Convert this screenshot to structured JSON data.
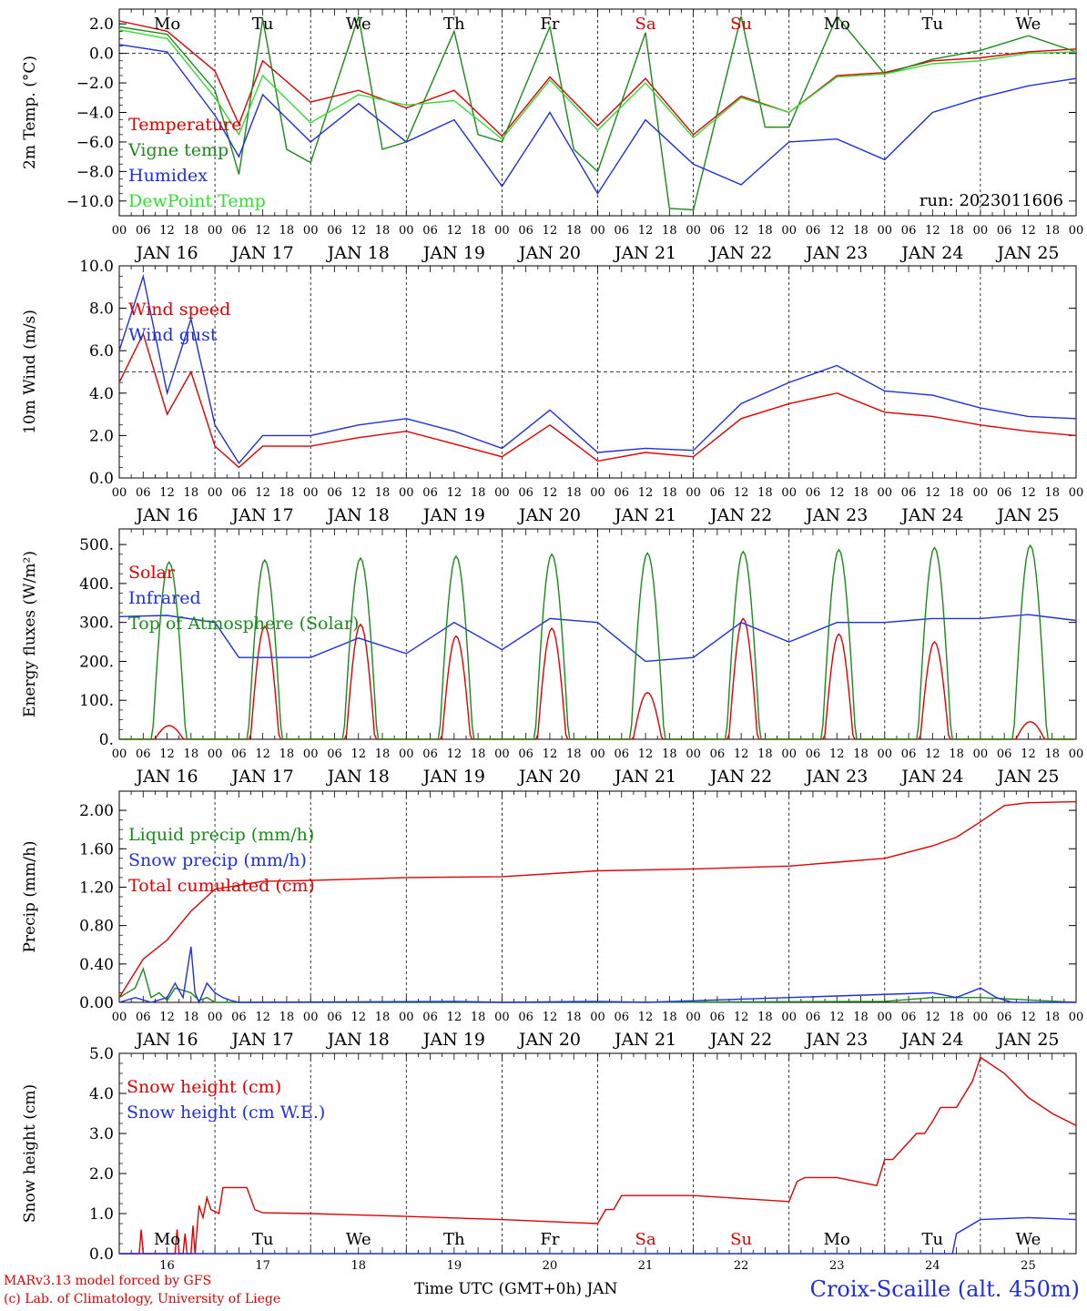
{
  "chart_data": [
    {
      "type": "line",
      "panel": "temperature",
      "ylabel": "2m Temp. (°C)",
      "ylim": [
        -11,
        3
      ],
      "yticks": [
        2.0,
        0.0,
        -2.0,
        -4.0,
        -6.0,
        -8.0,
        -10.0
      ],
      "ytick_labels": [
        "2.0",
        "0.0",
        "−2.0",
        "−4.0",
        "−6.0",
        "−8.0",
        "−10.0"
      ],
      "reference_line": 0.0,
      "annotation": "run: 2023011606",
      "series": [
        {
          "name": "Temperature",
          "color": "#e00000",
          "x": [
            0,
            12,
            24,
            30,
            36,
            48,
            60,
            72,
            84,
            96,
            108,
            120,
            132,
            144,
            156,
            168,
            180,
            192,
            204,
            216,
            228,
            240
          ],
          "y": [
            2.2,
            1.5,
            -1.2,
            -4.8,
            -0.5,
            -3.3,
            -2.5,
            -3.7,
            -2.5,
            -5.6,
            -1.6,
            -4.9,
            -1.7,
            -5.5,
            -2.9,
            -4.0,
            -1.5,
            -1.3,
            -0.5,
            -0.3,
            0.1,
            0.3
          ]
        },
        {
          "name": "Vigne temp",
          "color": "#1a8a1a",
          "x": [
            0,
            12,
            24,
            30,
            36,
            42,
            48,
            60,
            66,
            72,
            84,
            90,
            96,
            108,
            114,
            120,
            132,
            138,
            144,
            156,
            162,
            168,
            180,
            192,
            204,
            216,
            228,
            240
          ],
          "y": [
            1.8,
            1.3,
            -2.5,
            -8.2,
            2.3,
            -6.5,
            -7.4,
            2.5,
            -6.5,
            -6.0,
            1.5,
            -5.5,
            -6.0,
            1.8,
            -6.5,
            -8.0,
            1.4,
            -10.5,
            -10.6,
            2.5,
            -5.0,
            -5.0,
            2.5,
            -1.4,
            -0.4,
            0.2,
            1.2,
            0.1
          ]
        },
        {
          "name": "Humidex",
          "color": "#1f2fe0",
          "x": [
            0,
            12,
            24,
            30,
            36,
            48,
            60,
            72,
            84,
            96,
            108,
            120,
            132,
            144,
            156,
            168,
            180,
            192,
            204,
            216,
            228,
            240
          ],
          "y": [
            0.6,
            0.1,
            -4.2,
            -7.0,
            -2.8,
            -6.0,
            -3.4,
            -6.0,
            -4.5,
            -9.0,
            -4.0,
            -9.5,
            -4.5,
            -7.5,
            -8.9,
            -6.0,
            -5.8,
            -7.2,
            -4.0,
            -3.0,
            -2.2,
            -1.7
          ]
        },
        {
          "name": "DewPoint Temp",
          "color": "#33dd33",
          "x": [
            0,
            12,
            24,
            30,
            36,
            48,
            60,
            72,
            84,
            96,
            108,
            120,
            132,
            144,
            156,
            168,
            180,
            192,
            204,
            216,
            228,
            240
          ],
          "y": [
            1.6,
            1.0,
            -3.0,
            -5.5,
            -1.5,
            -4.7,
            -2.8,
            -3.5,
            -3.2,
            -5.8,
            -1.8,
            -5.2,
            -2.0,
            -5.7,
            -3.0,
            -4.0,
            -1.6,
            -1.4,
            -0.7,
            -0.5,
            0.0,
            0.1
          ]
        }
      ]
    },
    {
      "type": "line",
      "panel": "wind",
      "ylabel": "10m Wind (m/s)",
      "ylim": [
        0,
        10
      ],
      "yticks": [
        0.0,
        2.0,
        4.0,
        6.0,
        8.0,
        10.0
      ],
      "ytick_labels": [
        "0.0",
        "2.0",
        "4.0",
        "6.0",
        "8.0",
        "10.0"
      ],
      "reference_line": 5.0,
      "series": [
        {
          "name": "Wind speed",
          "color": "#e00000",
          "x": [
            0,
            6,
            12,
            18,
            24,
            30,
            36,
            48,
            60,
            72,
            84,
            96,
            108,
            120,
            132,
            144,
            156,
            168,
            180,
            192,
            204,
            216,
            228,
            240
          ],
          "y": [
            4.5,
            6.8,
            3.0,
            5.0,
            1.5,
            0.5,
            1.5,
            1.5,
            1.9,
            2.2,
            1.6,
            1.0,
            2.5,
            0.8,
            1.2,
            1.0,
            2.8,
            3.5,
            4.0,
            3.1,
            2.9,
            2.5,
            2.2,
            2.0
          ]
        },
        {
          "name": "Wind gust",
          "color": "#1f2fe0",
          "x": [
            0,
            6,
            12,
            18,
            24,
            30,
            36,
            48,
            60,
            72,
            84,
            96,
            108,
            120,
            132,
            144,
            156,
            168,
            180,
            192,
            204,
            216,
            228,
            240
          ],
          "y": [
            6.0,
            9.5,
            4.0,
            7.5,
            2.5,
            0.7,
            2.0,
            2.0,
            2.5,
            2.8,
            2.2,
            1.4,
            3.2,
            1.2,
            1.4,
            1.3,
            3.5,
            4.5,
            5.3,
            4.1,
            3.9,
            3.3,
            2.9,
            2.8
          ]
        }
      ]
    },
    {
      "type": "line",
      "panel": "energy",
      "ylabel": "Energy fluxes (W/m²)",
      "ylim": [
        0,
        540
      ],
      "yticks": [
        0,
        100,
        200,
        300,
        400,
        500
      ],
      "ytick_labels": [
        "0.",
        "100.",
        "200.",
        "300.",
        "400.",
        "500."
      ],
      "day_peaks": {
        "top_of_atmosphere": [
          455,
          460,
          465,
          470,
          475,
          478,
          482,
          487,
          492,
          498
        ],
        "solar": [
          35,
          290,
          295,
          265,
          285,
          120,
          310,
          270,
          250,
          45
        ]
      },
      "series": [
        {
          "name": "Solar",
          "color": "#e00000",
          "values": "day_peaks.solar"
        },
        {
          "name": "Infrared",
          "color": "#1f2fe0",
          "x": [
            0,
            12,
            24,
            30,
            36,
            48,
            60,
            72,
            84,
            96,
            108,
            120,
            132,
            144,
            156,
            168,
            180,
            192,
            204,
            216,
            228,
            240
          ],
          "y": [
            315,
            318,
            300,
            210,
            210,
            210,
            260,
            220,
            300,
            230,
            310,
            300,
            200,
            210,
            300,
            250,
            300,
            300,
            310,
            310,
            320,
            305
          ]
        },
        {
          "name": "Top of Atmosphere (Solar)",
          "color": "#1a8a1a",
          "values": "day_peaks.top_of_atmosphere"
        }
      ]
    },
    {
      "type": "line",
      "panel": "precip",
      "ylabel": "Precip (mm/h)",
      "ylim": [
        0,
        2.2
      ],
      "yticks": [
        0.0,
        0.4,
        0.8,
        1.2,
        1.6,
        2.0
      ],
      "ytick_labels": [
        "0.00",
        "0.40",
        "0.80",
        "1.20",
        "1.60",
        "2.00"
      ],
      "series": [
        {
          "name": "Liquid precip (mm/h)",
          "color": "#1a8a1a",
          "x": [
            0,
            4,
            6,
            8,
            10,
            12,
            14,
            18,
            20,
            22,
            24,
            26,
            30,
            60,
            120,
            192,
            204,
            210,
            216,
            240
          ],
          "y": [
            0.05,
            0.15,
            0.35,
            0.05,
            0.1,
            0.02,
            0.15,
            0.1,
            0.02,
            0.05,
            0.0,
            0.0,
            0.0,
            0.0,
            0.0,
            0.01,
            0.05,
            0.05,
            0.05,
            0.0
          ]
        },
        {
          "name": "Snow precip (mm/h)",
          "color": "#1f2fe0",
          "x": [
            0,
            4,
            8,
            12,
            14,
            16,
            18,
            19,
            20,
            22,
            24,
            26,
            28,
            30,
            84,
            96,
            120,
            132,
            204,
            210,
            216,
            220,
            224,
            240
          ],
          "y": [
            0.0,
            0.05,
            0.0,
            0.05,
            0.2,
            0.05,
            0.58,
            0.1,
            0.0,
            0.2,
            0.1,
            0.05,
            0.02,
            0.0,
            0.01,
            0.0,
            0.01,
            0.0,
            0.1,
            0.05,
            0.15,
            0.05,
            0.0,
            0.0
          ]
        },
        {
          "name": "Total cumulated (cm)",
          "color": "#e00000",
          "x": [
            0,
            6,
            12,
            18,
            24,
            36,
            48,
            72,
            96,
            120,
            144,
            168,
            180,
            192,
            204,
            210,
            216,
            222,
            228,
            240
          ],
          "y": [
            0.05,
            0.45,
            0.65,
            0.95,
            1.18,
            1.26,
            1.27,
            1.3,
            1.31,
            1.37,
            1.39,
            1.42,
            1.46,
            1.5,
            1.63,
            1.72,
            1.88,
            2.05,
            2.08,
            2.09
          ]
        }
      ]
    },
    {
      "type": "line",
      "panel": "snow",
      "ylabel": "Snow height (cm)",
      "ylim": [
        0,
        5
      ],
      "yticks": [
        0.0,
        1.0,
        2.0,
        3.0,
        4.0,
        5.0
      ],
      "ytick_labels": [
        "0.0",
        "1.0",
        "2.0",
        "3.0",
        "4.0",
        "5.0"
      ],
      "series": [
        {
          "name": "Snow height (cm)",
          "color": "#e00000",
          "x": [
            0,
            5,
            5.5,
            6,
            14,
            14.5,
            15,
            16,
            16.5,
            17,
            18,
            18.5,
            19,
            20,
            21,
            22,
            23,
            24,
            25,
            26,
            32,
            34,
            36,
            48,
            72,
            96,
            120,
            122,
            124,
            126,
            144,
            168,
            170,
            172,
            180,
            190,
            192,
            194,
            200,
            202,
            204,
            206,
            210,
            214,
            216,
            222,
            228,
            234,
            240
          ],
          "y": [
            0,
            0,
            0.6,
            0,
            0,
            0.6,
            0,
            0,
            0.5,
            0,
            0,
            0.7,
            0,
            1.2,
            0.9,
            1.4,
            1.1,
            1.05,
            1.0,
            1.65,
            1.65,
            1.1,
            1.02,
            1.0,
            0.93,
            0.85,
            0.75,
            1.1,
            1.1,
            1.45,
            1.45,
            1.3,
            1.8,
            1.9,
            1.9,
            1.7,
            2.35,
            2.35,
            3.0,
            3.0,
            3.3,
            3.65,
            3.65,
            4.3,
            4.9,
            4.5,
            3.9,
            3.5,
            3.2
          ]
        },
        {
          "name": "Snow height (cm W.E.)",
          "color": "#1f2fe0",
          "x": [
            0,
            209,
            210,
            216,
            228,
            240
          ],
          "y": [
            0,
            0,
            0.5,
            0.85,
            0.9,
            0.85
          ]
        }
      ]
    }
  ],
  "shared_x": {
    "hour_ticks": [
      "00",
      "06",
      "12",
      "18"
    ],
    "date_labels": [
      "JAN 16",
      "JAN 17",
      "JAN 18",
      "JAN 19",
      "JAN 20",
      "JAN 21",
      "JAN 22",
      "JAN 23",
      "JAN 24",
      "JAN 25"
    ],
    "weekdays": [
      "Mo",
      "Tu",
      "We",
      "Th",
      "Fr",
      "Sa",
      "Su",
      "Mo",
      "Tu",
      "We"
    ],
    "weekend_color": "#e00000",
    "weekday_color": "#000000",
    "bottom_day_numbers": [
      "16",
      "17",
      "18",
      "19",
      "20",
      "21",
      "22",
      "23",
      "24",
      "25"
    ]
  },
  "footer": {
    "model": "MARv3.13 model forced by GFS",
    "credit": "(c) Lab. of Climatology, University of Liege",
    "axis_title": "Time UTC (GMT+0h) JAN",
    "station": "Croix-Scaille (alt. 450m)"
  }
}
